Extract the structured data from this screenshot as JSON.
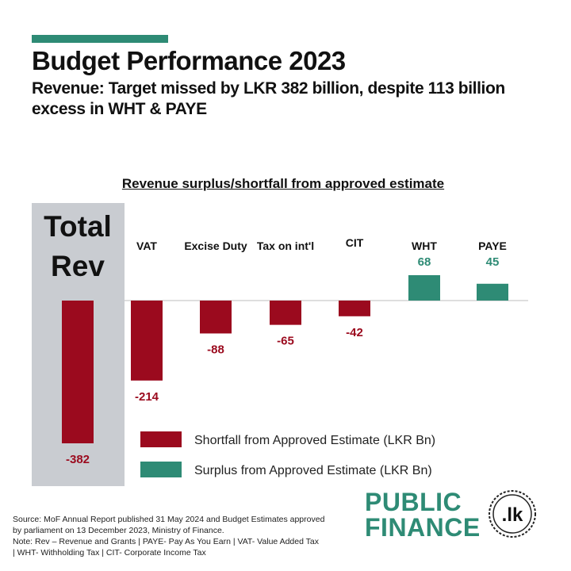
{
  "header": {
    "title": "Budget Performance 2023",
    "subtitle": "Revenue: Target missed by LKR 382 billion, despite 113 billion excess in WHT & PAYE"
  },
  "chart_data": {
    "type": "bar",
    "title": "Revenue surplus/shortfall from approved estimate",
    "total": {
      "label_line1": "Total",
      "label_line2": "Rev",
      "value": -382,
      "value_label": "-382"
    },
    "categories": [
      "VAT",
      "Excise Duty",
      "Tax on int'l",
      "CIT",
      "WHT",
      "PAYE"
    ],
    "values": [
      -214,
      -88,
      -65,
      -42,
      68,
      45
    ],
    "value_labels": [
      "-214",
      "-88",
      "-65",
      "-42",
      "68",
      "45"
    ],
    "legend": [
      {
        "label": "Shortfall from Approved Estimate (LKR Bn)",
        "color": "#9b0a1e"
      },
      {
        "label": "Surplus from Approved Estimate (LKR Bn)",
        "color": "#2e8b75"
      }
    ],
    "colors": {
      "negative": "#9b0a1e",
      "positive": "#2e8b75",
      "total_bg": "#c9ccd1"
    }
  },
  "footer": {
    "source_line1": "Source: MoF Annual Report published 31 May 2024 and Budget Estimates approved",
    "source_line2": "by parliament on 13 December 2023, Ministry of Finance.",
    "note_line1": "Note: Rev – Revenue and Grants | PAYE- Pay As You Earn | VAT- Value Added Tax",
    "note_line2": "| WHT- Withholding Tax | CIT- Corporate Income Tax"
  },
  "logo": {
    "line1": "PUBLIC",
    "line2": "FINANCE",
    "badge": ".lk"
  }
}
